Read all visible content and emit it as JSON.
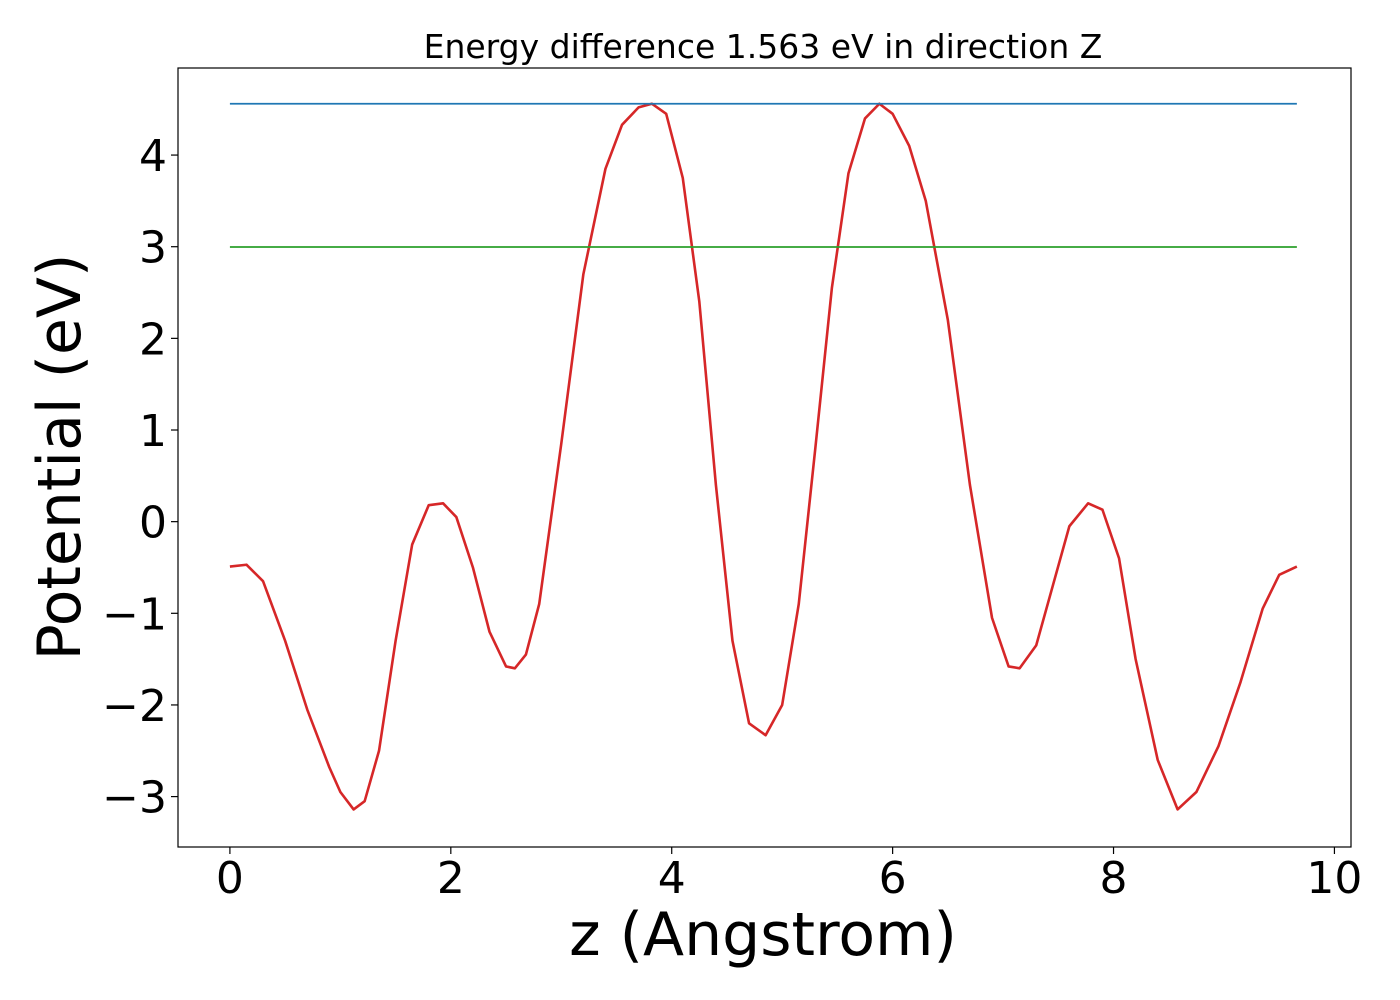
{
  "chart_data": {
    "type": "line",
    "title": "Energy difference 1.563 eV in direction Z",
    "xlabel": "z (Angstrom)",
    "ylabel": "Potential (eV)",
    "xlim": [
      -0.47,
      10.15
    ],
    "ylim": [
      -3.55,
      4.95
    ],
    "xticks": [
      0,
      2,
      4,
      6,
      8,
      10
    ],
    "xtick_labels": [
      "0",
      "2",
      "4",
      "6",
      "8",
      "10"
    ],
    "yticks": [
      -3,
      -2,
      -1,
      0,
      1,
      2,
      3,
      4
    ],
    "ytick_labels": [
      "−3",
      "−2",
      "−1",
      "0",
      "1",
      "2",
      "3",
      "4"
    ],
    "grid": false,
    "legend": "none",
    "series": [
      {
        "color": "#d62728",
        "x": [
          0.0,
          0.15,
          0.3,
          0.5,
          0.7,
          0.9,
          1.0,
          1.12,
          1.22,
          1.35,
          1.5,
          1.65,
          1.8,
          1.93,
          2.05,
          2.2,
          2.35,
          2.5,
          2.58,
          2.68,
          2.8,
          3.0,
          3.2,
          3.4,
          3.55,
          3.7,
          3.82,
          3.95,
          4.1,
          4.25,
          4.4,
          4.55,
          4.7,
          4.85,
          5.0,
          5.15,
          5.3,
          5.45,
          5.6,
          5.75,
          5.88,
          6.0,
          6.15,
          6.3,
          6.5,
          6.7,
          6.9,
          7.05,
          7.15,
          7.3,
          7.45,
          7.6,
          7.77,
          7.9,
          8.05,
          8.2,
          8.4,
          8.58,
          8.75,
          8.95,
          9.15,
          9.35,
          9.5,
          9.66
        ],
        "y": [
          -0.49,
          -0.47,
          -0.65,
          -1.3,
          -2.05,
          -2.68,
          -2.95,
          -3.14,
          -3.05,
          -2.5,
          -1.3,
          -0.25,
          0.18,
          0.2,
          0.05,
          -0.5,
          -1.2,
          -1.58,
          -1.6,
          -1.45,
          -0.9,
          0.85,
          2.7,
          3.85,
          4.33,
          4.52,
          4.56,
          4.45,
          3.75,
          2.4,
          0.4,
          -1.3,
          -2.2,
          -2.33,
          -2.0,
          -0.9,
          0.8,
          2.55,
          3.8,
          4.4,
          4.56,
          4.45,
          4.1,
          3.5,
          2.2,
          0.4,
          -1.05,
          -1.58,
          -1.6,
          -1.35,
          -0.7,
          -0.05,
          0.2,
          0.13,
          -0.4,
          -1.5,
          -2.6,
          -3.14,
          -2.95,
          -2.45,
          -1.75,
          -0.95,
          -0.58,
          -0.49
        ]
      },
      {
        "color": "#1f77b4",
        "x": [
          0.0,
          9.66
        ],
        "y": [
          4.56,
          4.56
        ]
      },
      {
        "color": "#2ca02c",
        "x": [
          0.0,
          9.66
        ],
        "y": [
          2.997,
          2.997
        ]
      }
    ]
  }
}
